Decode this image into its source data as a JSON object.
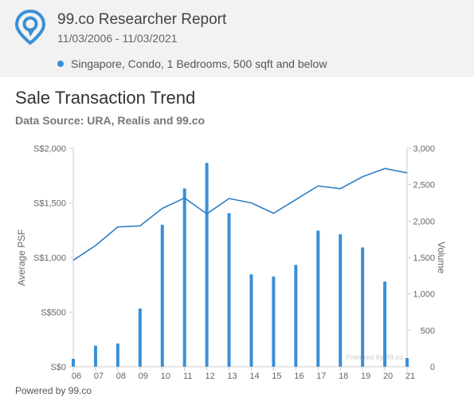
{
  "header": {
    "title": "99.co Researcher Report",
    "dates": "11/03/2006 - 11/03/2021",
    "filter": "Singapore, Condo, 1 Bedrooms, 500 sqft and below",
    "brand_color": "#3a8fd6"
  },
  "chart": {
    "title": "Sale Transaction Trend",
    "source": "Data Source: URA, Realis and 99.co",
    "watermark": "Powered by 99.co"
  },
  "footer": {
    "text": "Powered by 99.co"
  },
  "chart_data": {
    "type": "bar",
    "x": [
      "06",
      "07",
      "08",
      "09",
      "10",
      "11",
      "12",
      "13",
      "14",
      "15",
      "16",
      "17",
      "18",
      "19",
      "20",
      "21"
    ],
    "series": [
      {
        "type": "bar",
        "axis": "right",
        "color": "#3a8fd6",
        "values": [
          110,
          290,
          320,
          800,
          1950,
          2450,
          2800,
          2110,
          1270,
          1240,
          1400,
          1870,
          1820,
          1640,
          1170,
          120
        ]
      },
      {
        "type": "line",
        "axis": "left",
        "color": "#2f7fc4",
        "x_positions": [
          6,
          7,
          8,
          9,
          10,
          11,
          12,
          13,
          14,
          15,
          16,
          17,
          18,
          19,
          20,
          21
        ],
        "values": [
          975,
          1110,
          1280,
          1290,
          1450,
          1545,
          1400,
          1540,
          1500,
          1405,
          1530,
          1655,
          1630,
          1740,
          1815,
          1775
        ]
      }
    ],
    "ylabel": "Average PSF",
    "ylabel_right": "Volume",
    "ylim": [
      0,
      2000
    ],
    "ylim_right": [
      0,
      3000
    ],
    "yticks": [
      "S$0",
      "S$500",
      "S$1,000",
      "S$1,500",
      "S$2,000"
    ],
    "yticks_right": [
      "0",
      "500",
      "1,000",
      "1,500",
      "2,000",
      "2,500",
      "3,000"
    ],
    "grid": false
  }
}
